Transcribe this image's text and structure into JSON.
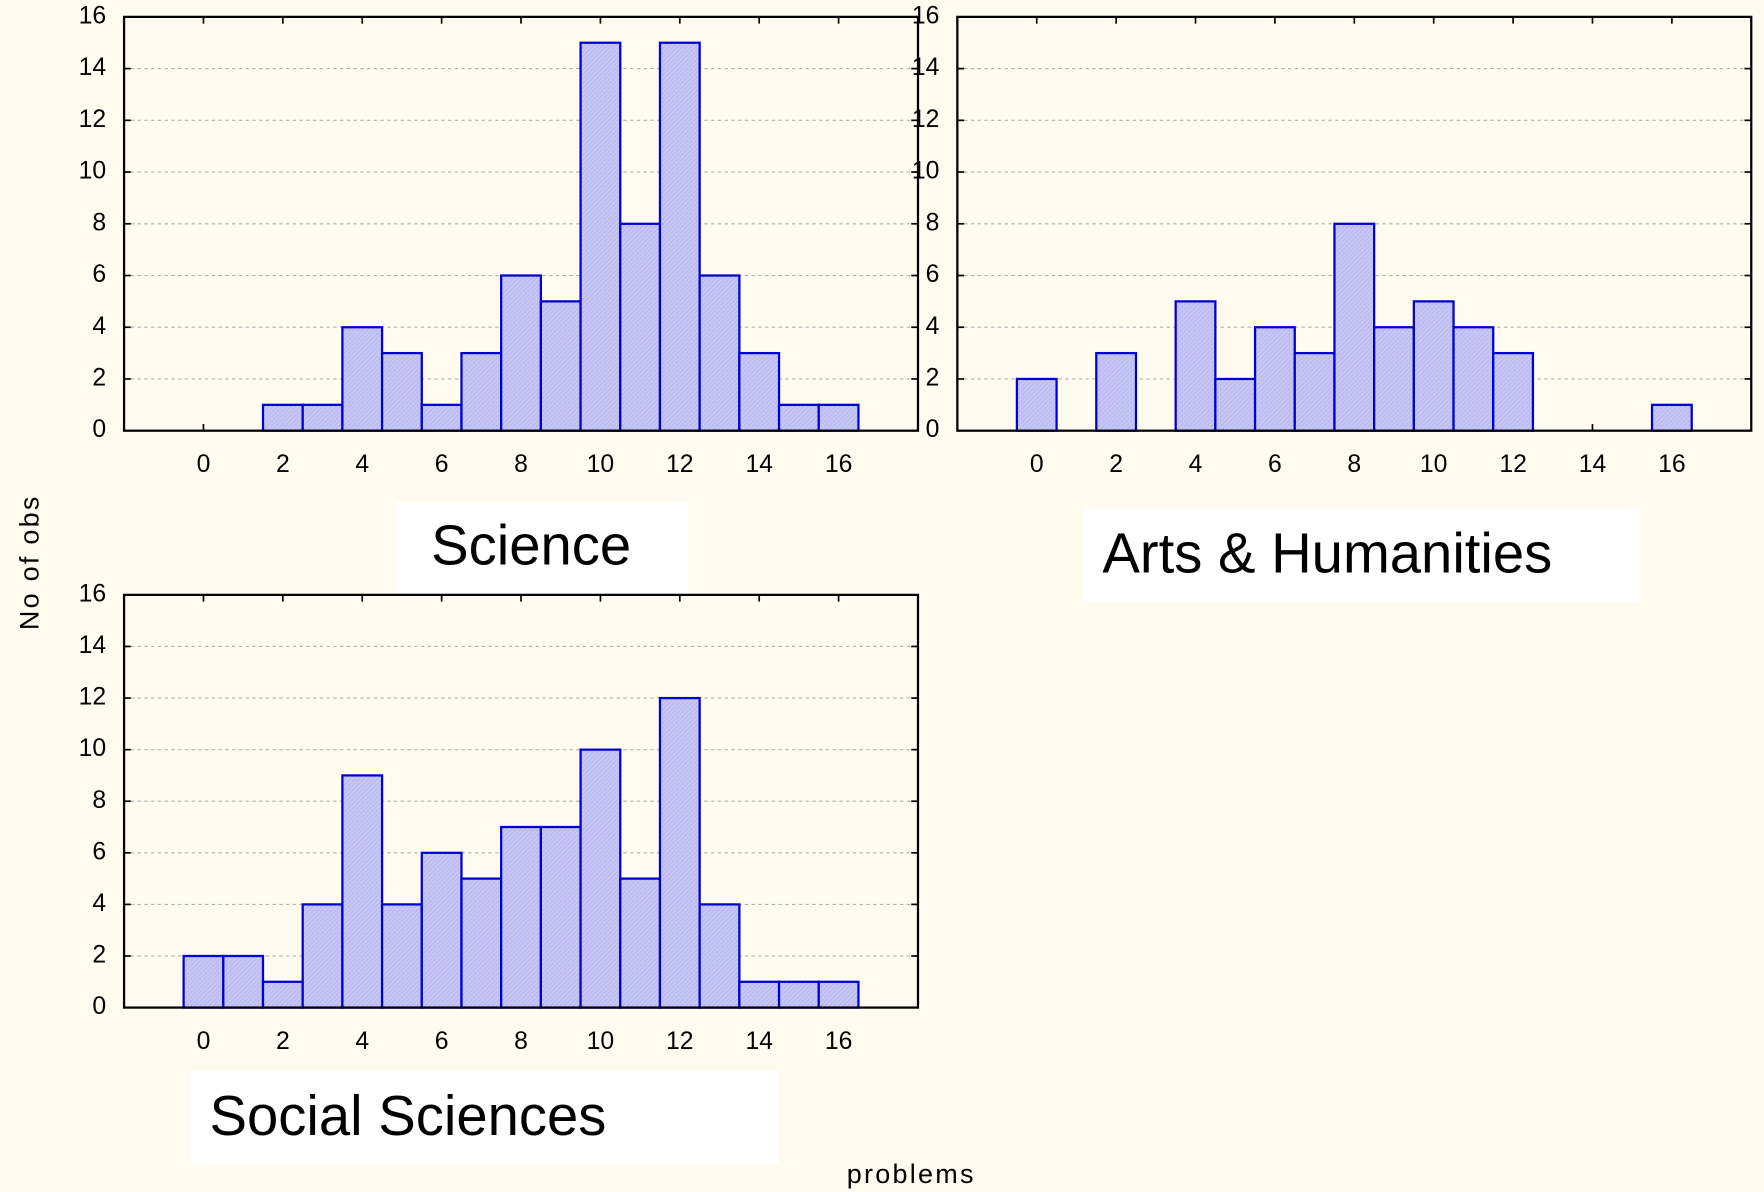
{
  "chart_data": [
    {
      "type": "histogram",
      "title": "Science",
      "bins": [
        -0.5,
        0.5,
        1.5,
        2.5,
        3.5,
        4.5,
        5.5,
        6.5,
        7.5,
        8.5,
        9.5,
        10.5,
        11.5,
        12.5,
        13.5,
        14.5,
        15.5,
        16.5
      ],
      "counts": [
        0,
        0,
        1,
        1,
        4,
        3,
        1,
        3,
        6,
        5,
        15,
        8,
        15,
        6,
        3,
        1,
        1
      ],
      "color": "#c8c8f8",
      "edge_color": "#0000d0",
      "xlim": [
        -2,
        18
      ],
      "xticks": [
        0,
        2,
        4,
        6,
        8,
        10,
        12,
        14,
        16
      ],
      "ylim": [
        0,
        16
      ],
      "yticks": [
        0,
        2,
        4,
        6,
        8,
        10,
        12,
        14,
        16
      ],
      "grid": true
    },
    {
      "type": "histogram",
      "title": "Arts & Humanities",
      "bins": [
        -0.5,
        0.5,
        1.5,
        2.5,
        3.5,
        4.5,
        5.5,
        6.5,
        7.5,
        8.5,
        9.5,
        10.5,
        11.5,
        12.5,
        13.5,
        14.5,
        15.5,
        16.5
      ],
      "counts": [
        2,
        0,
        3,
        0,
        5,
        2,
        4,
        3,
        8,
        4,
        5,
        4,
        3,
        0,
        0,
        0,
        1
      ],
      "color": "#c8c8f8",
      "edge_color": "#0000d0",
      "xlim": [
        -2,
        18
      ],
      "xticks": [
        0,
        2,
        4,
        6,
        8,
        10,
        12,
        14,
        16
      ],
      "ylim": [
        0,
        16
      ],
      "yticks": [
        0,
        2,
        4,
        6,
        8,
        10,
        12,
        14,
        16
      ],
      "grid": true
    },
    {
      "type": "histogram",
      "title": "Social Sciences",
      "bins": [
        -0.5,
        0.5,
        1.5,
        2.5,
        3.5,
        4.5,
        5.5,
        6.5,
        7.5,
        8.5,
        9.5,
        10.5,
        11.5,
        12.5,
        13.5,
        14.5,
        15.5,
        16.5
      ],
      "counts": [
        2,
        2,
        1,
        4,
        9,
        4,
        6,
        5,
        7,
        7,
        10,
        5,
        12,
        4,
        1,
        1,
        1
      ],
      "color": "#c8c8f8",
      "edge_color": "#0000d0",
      "xlim": [
        -2,
        18
      ],
      "xticks": [
        0,
        2,
        4,
        6,
        8,
        10,
        12,
        14,
        16
      ],
      "ylim": [
        0,
        16
      ],
      "yticks": [
        0,
        2,
        4,
        6,
        8,
        10,
        12,
        14,
        16
      ],
      "grid": true
    }
  ],
  "y_label": "No of obs",
  "x_label": "problems"
}
